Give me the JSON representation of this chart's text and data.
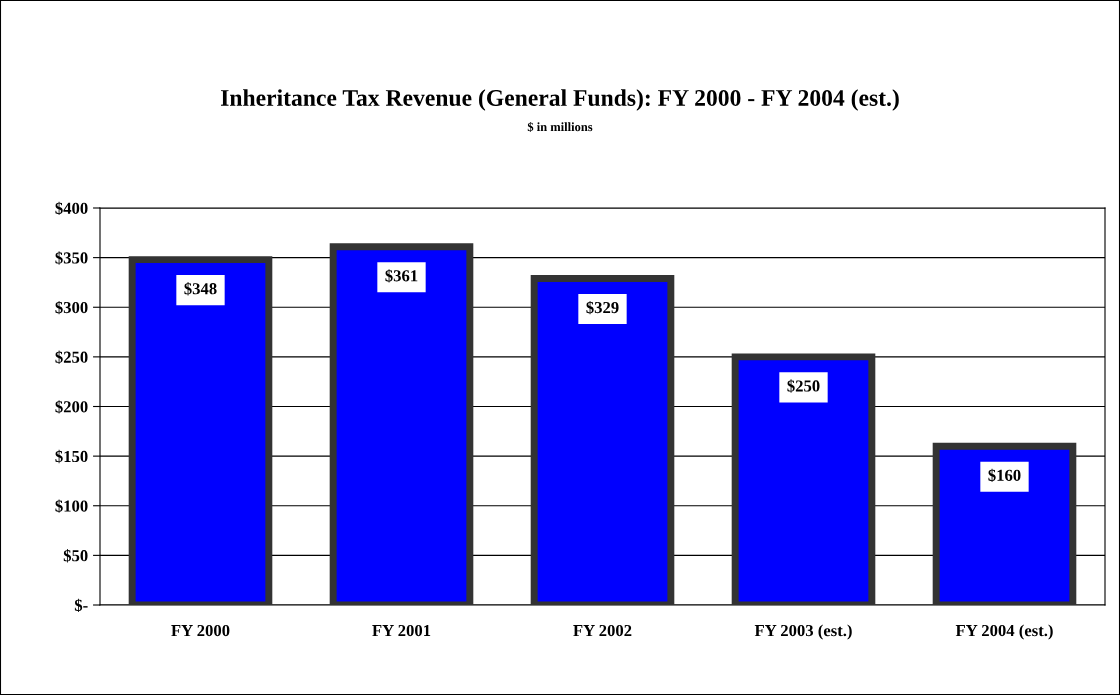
{
  "chart_data": {
    "type": "bar",
    "title": "Inheritance Tax Revenue (General Funds): FY 2000 - FY 2004 (est.)",
    "subtitle": "$ in millions",
    "categories": [
      "FY 2000",
      "FY 2001",
      "FY 2002",
      "FY 2003 (est.)",
      "FY 2004 (est.)"
    ],
    "values": [
      348,
      361,
      329,
      250,
      160
    ],
    "value_labels": [
      "$348",
      "$361",
      "$329",
      "$250",
      "$160"
    ],
    "color": "#0000ff",
    "ylim": [
      0,
      400
    ],
    "yticks": [
      {
        "value": 0,
        "label": "$-"
      },
      {
        "value": 50,
        "label": "$50"
      },
      {
        "value": 100,
        "label": "$100"
      },
      {
        "value": 150,
        "label": "$150"
      },
      {
        "value": 200,
        "label": "$200"
      },
      {
        "value": 250,
        "label": "$250"
      },
      {
        "value": 300,
        "label": "$300"
      },
      {
        "value": 350,
        "label": "$350"
      },
      {
        "value": 400,
        "label": "$400"
      }
    ],
    "grid": "y",
    "legend": false
  }
}
